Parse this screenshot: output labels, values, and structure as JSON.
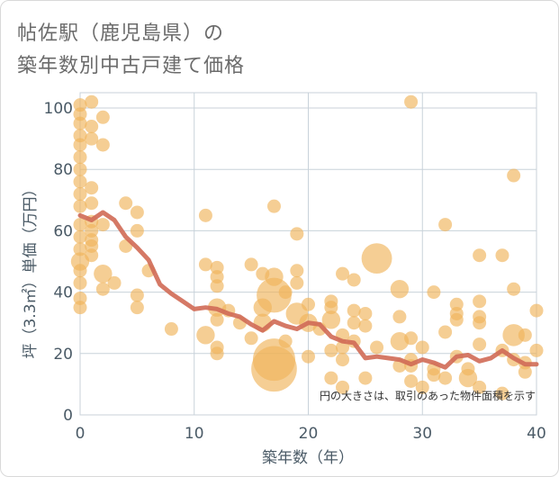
{
  "title_line1": "帖佐駅（鹿児島県）の",
  "title_line2": "築年数別中古戸建て価格",
  "chart_data": {
    "type": "scatter",
    "title": "帖佐駅（鹿児島県）の築年数別中古戸建て価格",
    "xlabel": "築年数（年）",
    "ylabel": "坪（3.3㎡）単価（万円）",
    "xlim": [
      0,
      40
    ],
    "ylim": [
      0,
      105
    ],
    "xticks": [
      "0",
      "10",
      "20",
      "30",
      "40"
    ],
    "yticks": [
      "0",
      "20",
      "40",
      "60",
      "80",
      "100"
    ],
    "annotation": "円の大きさは、取引のあった物件面積を示す",
    "bubble_color": "#f0b45a",
    "line_color": "#d06a55",
    "bubbles": [
      {
        "x": 0,
        "y": 101,
        "s": 1
      },
      {
        "x": 0,
        "y": 98,
        "s": 1
      },
      {
        "x": 0,
        "y": 95,
        "s": 1
      },
      {
        "x": 0,
        "y": 91,
        "s": 1
      },
      {
        "x": 0,
        "y": 88,
        "s": 1
      },
      {
        "x": 0,
        "y": 84,
        "s": 1
      },
      {
        "x": 0,
        "y": 80,
        "s": 1
      },
      {
        "x": 0,
        "y": 76,
        "s": 1
      },
      {
        "x": 0,
        "y": 72,
        "s": 1
      },
      {
        "x": 0,
        "y": 68,
        "s": 1
      },
      {
        "x": 0,
        "y": 62,
        "s": 1
      },
      {
        "x": 0,
        "y": 58,
        "s": 1
      },
      {
        "x": 0,
        "y": 54,
        "s": 1
      },
      {
        "x": 0,
        "y": 50,
        "s": 2
      },
      {
        "x": 0,
        "y": 47,
        "s": 1
      },
      {
        "x": 0,
        "y": 43,
        "s": 1
      },
      {
        "x": 0,
        "y": 38,
        "s": 1
      },
      {
        "x": 0,
        "y": 35,
        "s": 1
      },
      {
        "x": 1,
        "y": 102,
        "s": 1
      },
      {
        "x": 1,
        "y": 94,
        "s": 1
      },
      {
        "x": 1,
        "y": 90,
        "s": 1
      },
      {
        "x": 1,
        "y": 74,
        "s": 1
      },
      {
        "x": 1,
        "y": 69,
        "s": 1
      },
      {
        "x": 1,
        "y": 63,
        "s": 1
      },
      {
        "x": 1,
        "y": 60,
        "s": 1
      },
      {
        "x": 1,
        "y": 57,
        "s": 1
      },
      {
        "x": 1,
        "y": 55,
        "s": 1
      },
      {
        "x": 1,
        "y": 52,
        "s": 1
      },
      {
        "x": 2,
        "y": 97,
        "s": 1
      },
      {
        "x": 2,
        "y": 88,
        "s": 1
      },
      {
        "x": 2,
        "y": 62,
        "s": 1
      },
      {
        "x": 2,
        "y": 46,
        "s": 2
      },
      {
        "x": 2,
        "y": 41,
        "s": 1
      },
      {
        "x": 3,
        "y": 43,
        "s": 1
      },
      {
        "x": 4,
        "y": 69,
        "s": 1
      },
      {
        "x": 4,
        "y": 55,
        "s": 1
      },
      {
        "x": 5,
        "y": 66,
        "s": 1
      },
      {
        "x": 5,
        "y": 60,
        "s": 1
      },
      {
        "x": 5,
        "y": 39,
        "s": 1
      },
      {
        "x": 5,
        "y": 35,
        "s": 1
      },
      {
        "x": 6,
        "y": 47,
        "s": 1
      },
      {
        "x": 8,
        "y": 28,
        "s": 1
      },
      {
        "x": 11,
        "y": 65,
        "s": 1
      },
      {
        "x": 11,
        "y": 49,
        "s": 1
      },
      {
        "x": 11,
        "y": 26,
        "s": 2
      },
      {
        "x": 12,
        "y": 48,
        "s": 1
      },
      {
        "x": 12,
        "y": 45,
        "s": 1
      },
      {
        "x": 12,
        "y": 42,
        "s": 1
      },
      {
        "x": 12,
        "y": 35,
        "s": 2
      },
      {
        "x": 12,
        "y": 31,
        "s": 1
      },
      {
        "x": 12,
        "y": 22,
        "s": 1
      },
      {
        "x": 12,
        "y": 20,
        "s": 1
      },
      {
        "x": 13,
        "y": 34,
        "s": 1
      },
      {
        "x": 14,
        "y": 30,
        "s": 1
      },
      {
        "x": 15,
        "y": 49,
        "s": 1
      },
      {
        "x": 15,
        "y": 25,
        "s": 1
      },
      {
        "x": 16,
        "y": 46,
        "s": 1
      },
      {
        "x": 16,
        "y": 35,
        "s": 2
      },
      {
        "x": 16,
        "y": 30,
        "s": 2
      },
      {
        "x": 17,
        "y": 68,
        "s": 1
      },
      {
        "x": 17,
        "y": 45,
        "s": 2
      },
      {
        "x": 17,
        "y": 39,
        "s": 8
      },
      {
        "x": 17,
        "y": 18,
        "s": 12
      },
      {
        "x": 17,
        "y": 15,
        "s": 14
      },
      {
        "x": 18,
        "y": 40,
        "s": 1
      },
      {
        "x": 18,
        "y": 24,
        "s": 1
      },
      {
        "x": 19,
        "y": 59,
        "s": 1
      },
      {
        "x": 19,
        "y": 47,
        "s": 1
      },
      {
        "x": 19,
        "y": 43,
        "s": 1
      },
      {
        "x": 19,
        "y": 33,
        "s": 3
      },
      {
        "x": 20,
        "y": 36,
        "s": 1
      },
      {
        "x": 20,
        "y": 30,
        "s": 2
      },
      {
        "x": 20,
        "y": 19,
        "s": 1
      },
      {
        "x": 21,
        "y": 28,
        "s": 1
      },
      {
        "x": 22,
        "y": 37,
        "s": 1
      },
      {
        "x": 22,
        "y": 35,
        "s": 1
      },
      {
        "x": 22,
        "y": 31,
        "s": 2
      },
      {
        "x": 22,
        "y": 21,
        "s": 1
      },
      {
        "x": 22,
        "y": 12,
        "s": 1
      },
      {
        "x": 23,
        "y": 46,
        "s": 1
      },
      {
        "x": 23,
        "y": 26,
        "s": 1
      },
      {
        "x": 23,
        "y": 22,
        "s": 1
      },
      {
        "x": 23,
        "y": 18,
        "s": 1
      },
      {
        "x": 23,
        "y": 9,
        "s": 1
      },
      {
        "x": 24,
        "y": 44,
        "s": 1
      },
      {
        "x": 24,
        "y": 34,
        "s": 1
      },
      {
        "x": 24,
        "y": 30,
        "s": 1
      },
      {
        "x": 24,
        "y": 24,
        "s": 1
      },
      {
        "x": 25,
        "y": 33,
        "s": 1
      },
      {
        "x": 25,
        "y": 29,
        "s": 1
      },
      {
        "x": 25,
        "y": 12,
        "s": 1
      },
      {
        "x": 26,
        "y": 51,
        "s": 6
      },
      {
        "x": 26,
        "y": 22,
        "s": 1
      },
      {
        "x": 28,
        "y": 41,
        "s": 2
      },
      {
        "x": 28,
        "y": 32,
        "s": 1
      },
      {
        "x": 28,
        "y": 24,
        "s": 2
      },
      {
        "x": 28,
        "y": 16,
        "s": 1
      },
      {
        "x": 29,
        "y": 102,
        "s": 1
      },
      {
        "x": 29,
        "y": 25,
        "s": 1
      },
      {
        "x": 29,
        "y": 18,
        "s": 1
      },
      {
        "x": 29,
        "y": 16,
        "s": 1
      },
      {
        "x": 29,
        "y": 11,
        "s": 1
      },
      {
        "x": 30,
        "y": 22,
        "s": 1
      },
      {
        "x": 30,
        "y": 9,
        "s": 1
      },
      {
        "x": 31,
        "y": 40,
        "s": 1
      },
      {
        "x": 31,
        "y": 15,
        "s": 1
      },
      {
        "x": 31,
        "y": 13,
        "s": 1
      },
      {
        "x": 32,
        "y": 62,
        "s": 1
      },
      {
        "x": 32,
        "y": 27,
        "s": 1
      },
      {
        "x": 32,
        "y": 12,
        "s": 1
      },
      {
        "x": 33,
        "y": 36,
        "s": 1
      },
      {
        "x": 33,
        "y": 33,
        "s": 1
      },
      {
        "x": 33,
        "y": 31,
        "s": 1
      },
      {
        "x": 33,
        "y": 19,
        "s": 1
      },
      {
        "x": 34,
        "y": 15,
        "s": 1
      },
      {
        "x": 34,
        "y": 12,
        "s": 2
      },
      {
        "x": 35,
        "y": 52,
        "s": 1
      },
      {
        "x": 35,
        "y": 37,
        "s": 1
      },
      {
        "x": 35,
        "y": 32,
        "s": 1
      },
      {
        "x": 35,
        "y": 30,
        "s": 1
      },
      {
        "x": 35,
        "y": 23,
        "s": 1
      },
      {
        "x": 35,
        "y": 9,
        "s": 1
      },
      {
        "x": 37,
        "y": 52,
        "s": 1
      },
      {
        "x": 37,
        "y": 21,
        "s": 1
      },
      {
        "x": 37,
        "y": 7,
        "s": 1
      },
      {
        "x": 38,
        "y": 78,
        "s": 1
      },
      {
        "x": 38,
        "y": 41,
        "s": 1
      },
      {
        "x": 38,
        "y": 26,
        "s": 3
      },
      {
        "x": 38,
        "y": 18,
        "s": 1
      },
      {
        "x": 39,
        "y": 26,
        "s": 1
      },
      {
        "x": 39,
        "y": 17,
        "s": 1
      },
      {
        "x": 39,
        "y": 14,
        "s": 1
      },
      {
        "x": 40,
        "y": 34,
        "s": 1
      },
      {
        "x": 40,
        "y": 21,
        "s": 1
      }
    ],
    "avg_line": [
      {
        "x": 0,
        "y": 65
      },
      {
        "x": 1,
        "y": 63.5
      },
      {
        "x": 2,
        "y": 66
      },
      {
        "x": 3,
        "y": 63.5
      },
      {
        "x": 4,
        "y": 58
      },
      {
        "x": 5,
        "y": 54.5
      },
      {
        "x": 6,
        "y": 50.5
      },
      {
        "x": 7,
        "y": 42.5
      },
      {
        "x": 8,
        "y": 39.5
      },
      {
        "x": 9,
        "y": 37
      },
      {
        "x": 10,
        "y": 34.5
      },
      {
        "x": 11,
        "y": 35
      },
      {
        "x": 12,
        "y": 34.5
      },
      {
        "x": 13,
        "y": 33
      },
      {
        "x": 14,
        "y": 32
      },
      {
        "x": 15,
        "y": 29.5
      },
      {
        "x": 16,
        "y": 27.5
      },
      {
        "x": 17,
        "y": 30.5
      },
      {
        "x": 18,
        "y": 29
      },
      {
        "x": 19,
        "y": 28
      },
      {
        "x": 20,
        "y": 30
      },
      {
        "x": 21,
        "y": 29.5
      },
      {
        "x": 22,
        "y": 25.5
      },
      {
        "x": 23,
        "y": 24
      },
      {
        "x": 24,
        "y": 23.5
      },
      {
        "x": 25,
        "y": 18.5
      },
      {
        "x": 26,
        "y": 19
      },
      {
        "x": 27,
        "y": 18.5
      },
      {
        "x": 28,
        "y": 18
      },
      {
        "x": 29,
        "y": 16.5
      },
      {
        "x": 30,
        "y": 18
      },
      {
        "x": 31,
        "y": 17
      },
      {
        "x": 32,
        "y": 15.5
      },
      {
        "x": 33,
        "y": 19
      },
      {
        "x": 34,
        "y": 19.5
      },
      {
        "x": 35,
        "y": 17.5
      },
      {
        "x": 36,
        "y": 18.5
      },
      {
        "x": 37,
        "y": 21
      },
      {
        "x": 38,
        "y": 18.5
      },
      {
        "x": 39,
        "y": 16.5
      },
      {
        "x": 40,
        "y": 16.5
      }
    ]
  }
}
